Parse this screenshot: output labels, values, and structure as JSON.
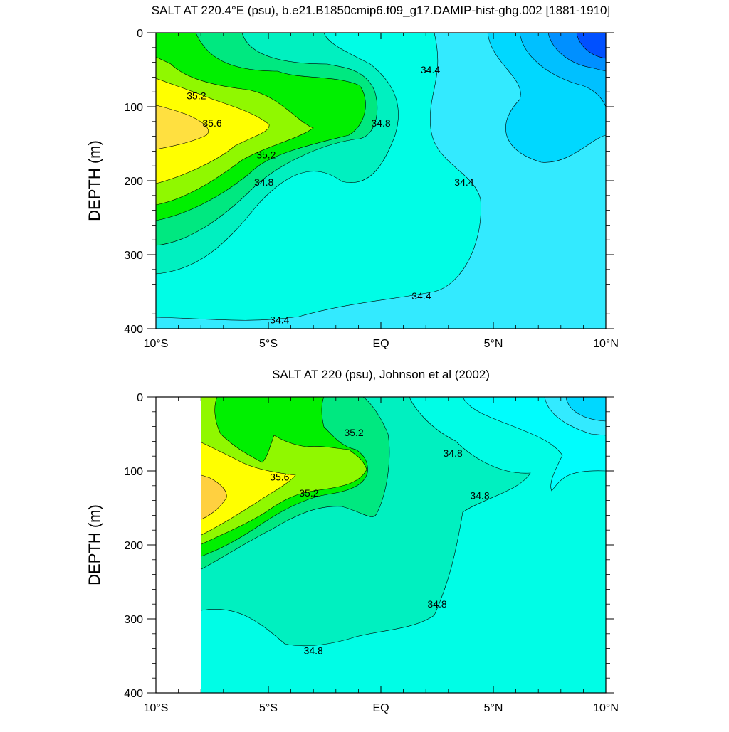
{
  "chart_data": [
    {
      "type": "contour",
      "title": "SALT AT 220.4°E (psu), b.e21.B1850cmip6.f09_g17.DAMIP-hist-ghg.002 [1881-1910]",
      "ylabel": "DEPTH (m)",
      "xlim": [
        -10,
        10
      ],
      "ylim": [
        400,
        0
      ],
      "x_tick_labels": [
        "10°S",
        "5°S",
        "EQ",
        "5°N",
        "10°N"
      ],
      "x_ticks": [
        -10,
        -5,
        0,
        5,
        10
      ],
      "y_ticks": [
        0,
        100,
        200,
        300,
        400
      ],
      "contour_labels": [
        {
          "text": "35.2",
          "x": -8.2,
          "y": 85
        },
        {
          "text": "35.6",
          "x": -7.5,
          "y": 122
        },
        {
          "text": "35.2",
          "x": -5.1,
          "y": 165
        },
        {
          "text": "34.8",
          "x": -5.2,
          "y": 202
        },
        {
          "text": "34.8",
          "x": 0.0,
          "y": 122
        },
        {
          "text": "34.4",
          "x": 2.2,
          "y": 50
        },
        {
          "text": "34.4",
          "x": 3.7,
          "y": 202
        },
        {
          "text": "34.4",
          "x": 1.8,
          "y": 356
        },
        {
          "text": "34.4",
          "x": -4.5,
          "y": 388
        }
      ]
    },
    {
      "type": "contour",
      "title": "SALT AT 220 (psu), Johnson et al (2002)",
      "ylabel": "DEPTH (m)",
      "xlim": [
        -10,
        10
      ],
      "ylim": [
        400,
        0
      ],
      "x_tick_labels": [
        "10°S",
        "5°S",
        "EQ",
        "5°N",
        "10°N"
      ],
      "x_ticks": [
        -10,
        -5,
        0,
        5,
        10
      ],
      "y_ticks": [
        0,
        100,
        200,
        300,
        400
      ],
      "contour_labels": [
        {
          "text": "35.2",
          "x": -1.2,
          "y": 48
        },
        {
          "text": "35.6",
          "x": -4.5,
          "y": 108
        },
        {
          "text": "35.2",
          "x": -3.2,
          "y": 130
        },
        {
          "text": "34.8",
          "x": 3.2,
          "y": 76
        },
        {
          "text": "34.8",
          "x": 4.4,
          "y": 133
        },
        {
          "text": "34.8",
          "x": 2.5,
          "y": 280
        },
        {
          "text": "34.8",
          "x": -3.0,
          "y": 343
        }
      ]
    }
  ]
}
